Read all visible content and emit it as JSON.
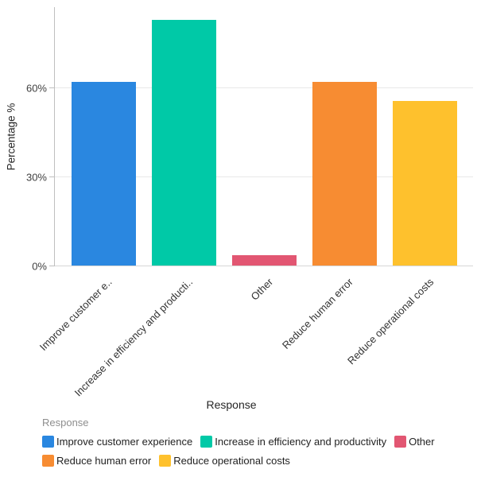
{
  "chart_data": {
    "type": "bar",
    "title": "",
    "xlabel": "Response",
    "ylabel": "Percentage %",
    "categories": [
      "Improve customer experience",
      "Increase in efficiency and productivity",
      "Other",
      "Reduce human error",
      "Reduce operational costs"
    ],
    "x_tick_labels": [
      "Improve customer e..",
      "Increase in efficiency and producti..",
      "Other",
      "Reduce human error",
      "Reduce operational costs"
    ],
    "values": [
      62,
      83,
      3.5,
      62,
      55.5
    ],
    "bar_colors": [
      "#2A87E0",
      "#00C9A7",
      "#E25672",
      "#F78C32",
      "#FEC12D"
    ],
    "ylim": [
      0,
      87.5
    ],
    "y_ticks": [
      {
        "value": 0,
        "label": "0%"
      },
      {
        "value": 30,
        "label": "30%"
      },
      {
        "value": 60,
        "label": "60%"
      }
    ],
    "gridlines": [
      30,
      60
    ],
    "grid": true,
    "legend": {
      "title": "Response",
      "position": "bottom-left",
      "entries": [
        {
          "label": "Improve customer experience",
          "color": "#2A87E0"
        },
        {
          "label": "Increase in efficiency and productivity",
          "color": "#00C9A7"
        },
        {
          "label": "Other",
          "color": "#E25672"
        },
        {
          "label": "Reduce human error",
          "color": "#F78C32"
        },
        {
          "label": "Reduce operational costs",
          "color": "#FEC12D"
        }
      ]
    }
  }
}
